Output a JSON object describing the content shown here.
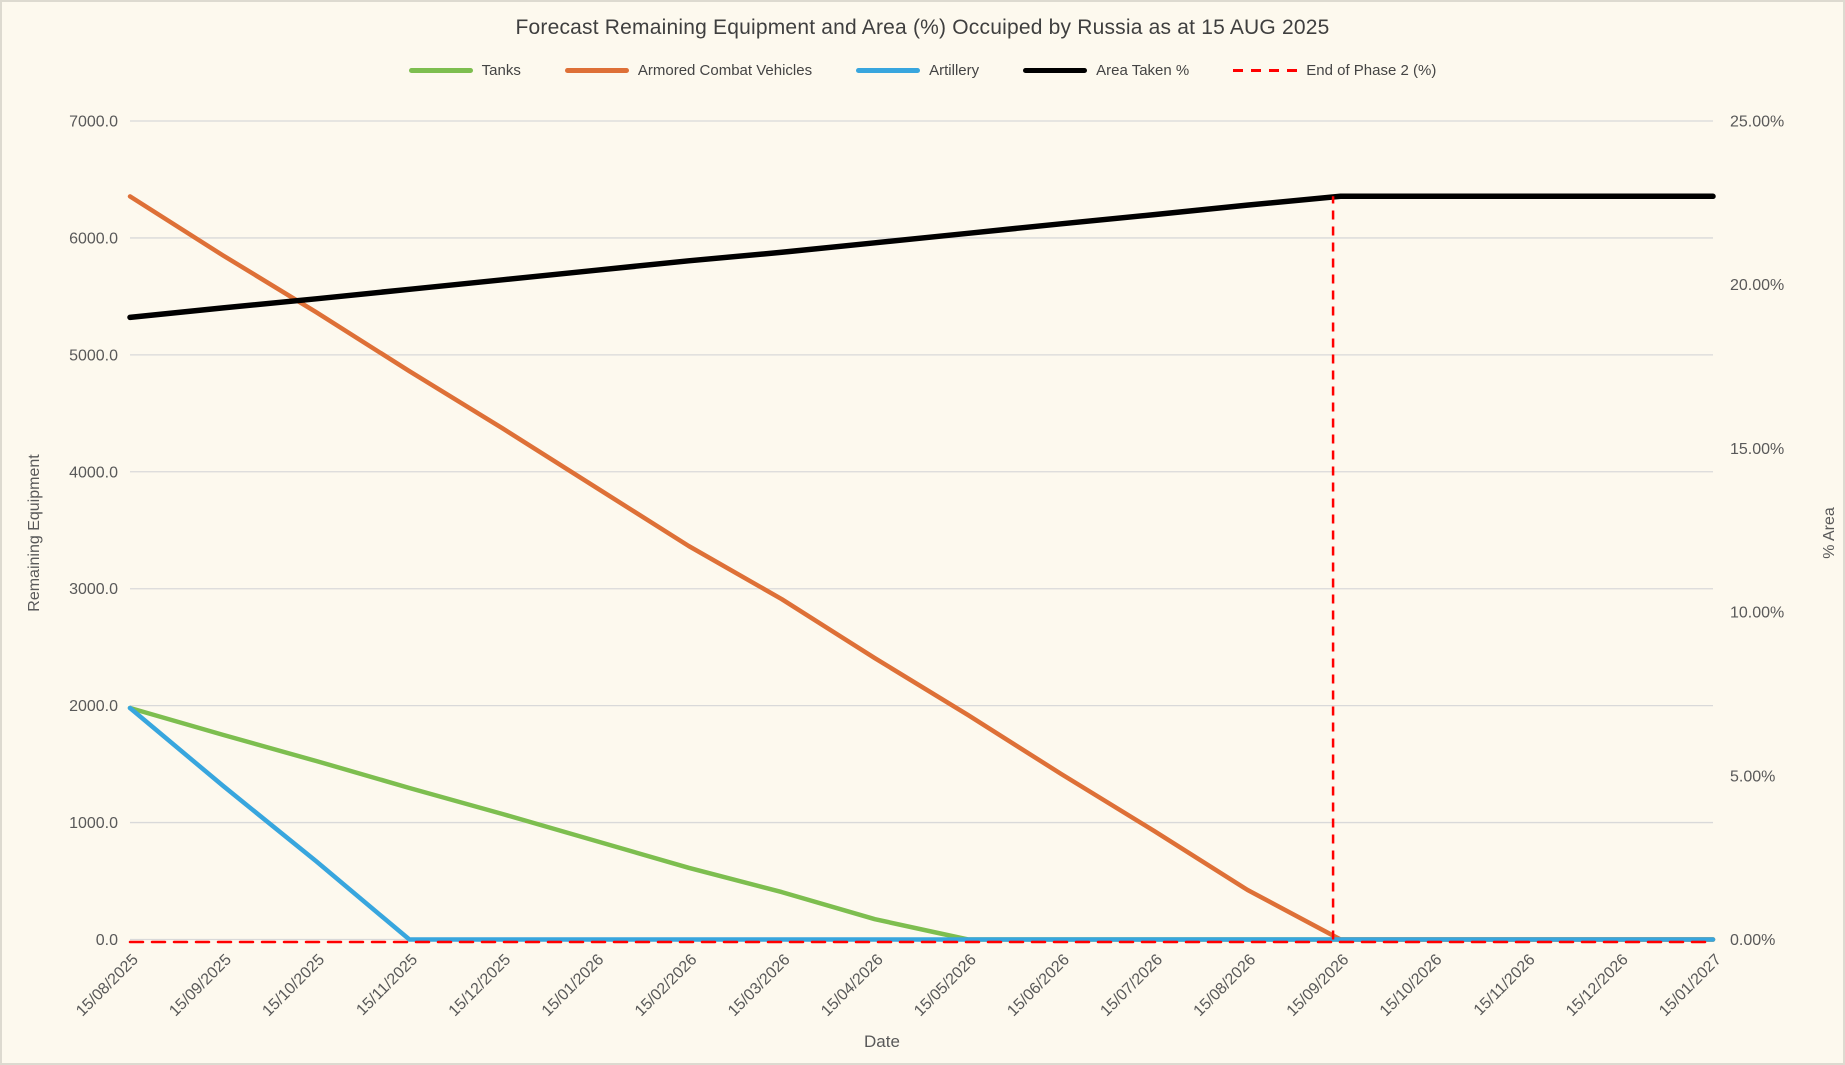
{
  "chart_data": {
    "type": "line",
    "title": "Forecast Remaining Equipment and Area (%) Occuiped by Russia as at 15 AUG 2025",
    "xlabel": "Date",
    "ylabel_left": "Remaining Equipment",
    "ylabel_right": "% Area",
    "grid": "horizontal-only",
    "legend_position": "top-center",
    "colors": {
      "background": "#FDF9EE",
      "gridline": "#D9D9D9",
      "tick_text": "#595959",
      "title_text": "#3F3F3F"
    },
    "x_categories": [
      "15/08/2025",
      "15/09/2025",
      "15/10/2025",
      "15/11/2025",
      "15/12/2025",
      "15/01/2026",
      "15/02/2026",
      "15/03/2026",
      "15/04/2026",
      "15/05/2026",
      "15/06/2026",
      "15/07/2026",
      "15/08/2026",
      "15/09/2026",
      "15/10/2026",
      "15/11/2026",
      "15/12/2026",
      "15/01/2027"
    ],
    "y_axis_left": {
      "min": 0,
      "max": 7000,
      "step": 1000,
      "tick_labels": [
        "0.0",
        "1000.0",
        "2000.0",
        "3000.0",
        "4000.0",
        "5000.0",
        "6000.0",
        "7000.0"
      ]
    },
    "y_axis_right": {
      "min": 0,
      "max": 25,
      "step": 5,
      "tick_labels": [
        "0.00%",
        "5.00%",
        "10.00%",
        "15.00%",
        "20.00%",
        "25.00%"
      ]
    },
    "series": [
      {
        "name": "Tanks",
        "color": "#7DBE4F",
        "axis": "left",
        "style": "solid",
        "width": 4.5,
        "values": [
          1980,
          1750,
          1527,
          1296,
          1073,
          843,
          613,
          405,
          174,
          0,
          0,
          0,
          0,
          0,
          0,
          0,
          0,
          0
        ]
      },
      {
        "name": "Armored Combat Vehicles",
        "color": "#DE7037",
        "axis": "left",
        "style": "solid",
        "width": 4.5,
        "values": [
          6355,
          5850,
          5365,
          4860,
          4372,
          3868,
          3365,
          2910,
          2406,
          1919,
          1415,
          927,
          424,
          0,
          0,
          0,
          0,
          0
        ]
      },
      {
        "name": "Artillery",
        "color": "#38A6DE",
        "axis": "left",
        "style": "solid",
        "width": 4.5,
        "values": [
          1980,
          1314,
          669,
          0,
          0,
          0,
          0,
          0,
          0,
          0,
          0,
          0,
          0,
          0,
          0,
          0,
          0,
          0
        ]
      },
      {
        "name": "Area Taken %",
        "color": "#000000",
        "axis": "right",
        "style": "solid",
        "width": 5.5,
        "values": [
          19.0,
          19.29,
          19.57,
          19.86,
          20.15,
          20.44,
          20.73,
          20.99,
          21.28,
          21.57,
          21.86,
          22.14,
          22.43,
          22.7,
          22.7,
          22.7,
          22.7,
          22.7
        ]
      },
      {
        "name": "End of Phase 2 (%)",
        "color": "#FF0000",
        "axis": "right",
        "style": "dashed",
        "width": 2.5,
        "values": [
          0,
          0,
          0,
          0,
          0,
          0,
          0,
          0,
          0,
          0,
          0,
          0,
          0,
          0,
          0,
          0,
          0,
          0
        ]
      }
    ],
    "end_of_phase_2_marker": {
      "x_index": 12.92,
      "from_pct": 0,
      "to_pct": 22.7,
      "color": "#FF0000",
      "style": "dashed"
    }
  }
}
